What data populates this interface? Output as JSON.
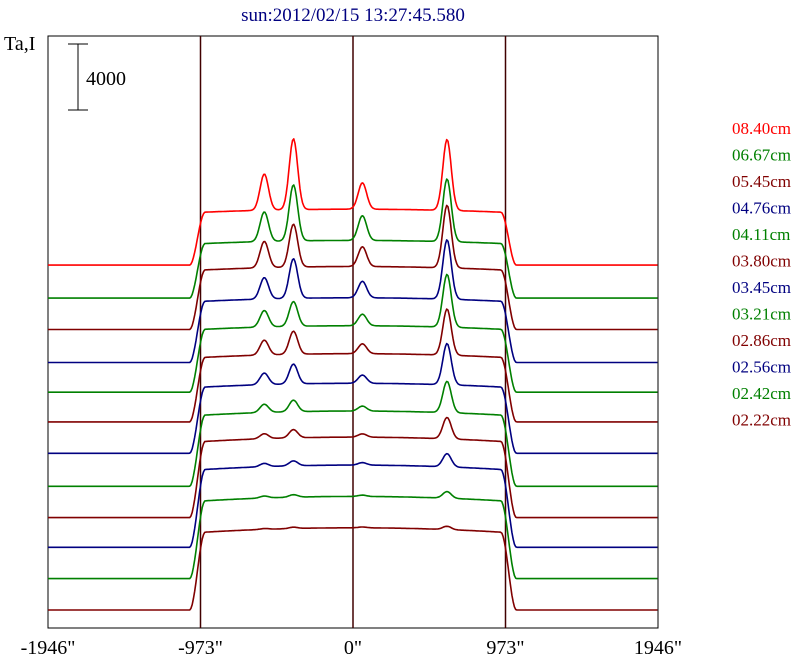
{
  "chart_data": {
    "type": "line",
    "title": "sun:2012/02/15 13:27:45.580",
    "ylabel": "Ta,I",
    "scale_bar_label": "4000",
    "scale_bar_value": 4000,
    "x_ticks": [
      {
        "value": -1946,
        "label": "-1946\""
      },
      {
        "value": -973,
        "label": "-973\""
      },
      {
        "value": 0,
        "label": "0\""
      },
      {
        "value": 973,
        "label": "973\""
      },
      {
        "value": 1946,
        "label": "1946\""
      }
    ],
    "xlim": [
      -1946,
      1946
    ],
    "vertical_lines": [
      -973,
      0,
      973
    ],
    "series": [
      {
        "name": "08.40cm",
        "color": "#ff0000",
        "baseline": 18400,
        "disk": 3200,
        "peaks": [
          [
            -566,
            2200
          ],
          [
            -380,
            4300
          ],
          [
            60,
            1600
          ],
          [
            600,
            4300
          ]
        ]
      },
      {
        "name": "06.67cm",
        "color": "#008000",
        "baseline": 16400,
        "disk": 3300,
        "peaks": [
          [
            -566,
            1800
          ],
          [
            -380,
            3400
          ],
          [
            60,
            1500
          ],
          [
            600,
            3800
          ]
        ]
      },
      {
        "name": "05.45cm",
        "color": "#800000",
        "baseline": 14500,
        "disk": 3600,
        "peaks": [
          [
            -566,
            1600
          ],
          [
            -380,
            2600
          ],
          [
            60,
            1200
          ],
          [
            600,
            3800
          ]
        ]
      },
      {
        "name": "04.76cm",
        "color": "#000080",
        "baseline": 12500,
        "disk": 3700,
        "peaks": [
          [
            -566,
            1300
          ],
          [
            -380,
            2400
          ],
          [
            60,
            1000
          ],
          [
            600,
            3600
          ]
        ]
      },
      {
        "name": "04.11cm",
        "color": "#008000",
        "baseline": 10700,
        "disk": 3800,
        "peaks": [
          [
            -566,
            1000
          ],
          [
            -380,
            1500
          ],
          [
            60,
            700
          ],
          [
            600,
            3200
          ]
        ]
      },
      {
        "name": "03.80cm",
        "color": "#800000",
        "baseline": 8900,
        "disk": 3900,
        "peaks": [
          [
            -566,
            900
          ],
          [
            -380,
            1400
          ],
          [
            60,
            600
          ],
          [
            600,
            2800
          ]
        ]
      },
      {
        "name": "03.45cm",
        "color": "#000080",
        "baseline": 7000,
        "disk": 4000,
        "peaks": [
          [
            -566,
            700
          ],
          [
            -380,
            1200
          ],
          [
            60,
            500
          ],
          [
            600,
            2500
          ]
        ]
      },
      {
        "name": "03.21cm",
        "color": "#008000",
        "baseline": 5000,
        "disk": 4300,
        "peaks": [
          [
            -566,
            500
          ],
          [
            -380,
            700
          ],
          [
            60,
            300
          ],
          [
            600,
            1900
          ]
        ]
      },
      {
        "name": "02.86cm",
        "color": "#800000",
        "baseline": 3100,
        "disk": 4600,
        "peaks": [
          [
            -566,
            300
          ],
          [
            -380,
            500
          ],
          [
            60,
            200
          ],
          [
            600,
            1300
          ]
        ]
      },
      {
        "name": "02.56cm",
        "color": "#000080",
        "baseline": 1300,
        "disk": 4700,
        "peaks": [
          [
            -566,
            200
          ],
          [
            -380,
            300
          ],
          [
            60,
            150
          ],
          [
            600,
            800
          ]
        ]
      },
      {
        "name": "02.42cm",
        "color": "#008000",
        "baseline": -600,
        "disk": 4700,
        "peaks": [
          [
            -566,
            120
          ],
          [
            -380,
            150
          ],
          [
            60,
            80
          ],
          [
            600,
            400
          ]
        ]
      },
      {
        "name": "02.22cm",
        "color": "#800000",
        "baseline": -2500,
        "disk": 4700,
        "peaks": [
          [
            -566,
            50
          ],
          [
            -380,
            80
          ],
          [
            60,
            50
          ],
          [
            600,
            200
          ]
        ]
      }
    ]
  }
}
